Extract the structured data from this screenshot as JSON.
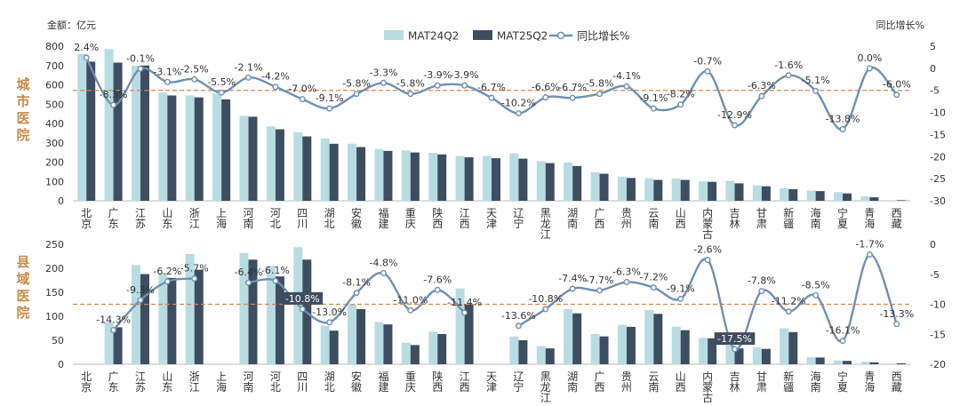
{
  "chart_data": [
    {
      "type": "bar",
      "section_label": "城市医院",
      "left_axis_title": "金额：亿元",
      "right_axis_title": "同比增长%",
      "legend": [
        "MAT24Q2",
        "MAT25Q2",
        "同比增长%"
      ],
      "categories": [
        "北京",
        "广东",
        "江苏",
        "山东",
        "浙江",
        "上海",
        "河南",
        "河北",
        "四川",
        "湖北",
        "安徽",
        "福建",
        "重庆",
        "陕西",
        "江西",
        "天津",
        "辽宁",
        "黑龙江",
        "湖南",
        "广西",
        "贵州",
        "云南",
        "山西",
        "内蒙古",
        "吉林",
        "甘肃",
        "新疆",
        "海南",
        "宁夏",
        "青海",
        "西藏"
      ],
      "ylim": [
        0,
        800
      ],
      "yticks": [
        0,
        100,
        200,
        300,
        400,
        500,
        600,
        700,
        800
      ],
      "y2lim": [
        -30,
        5
      ],
      "y2ticks": [
        5,
        0,
        -5,
        -10,
        -15,
        -20,
        -25,
        -30
      ],
      "series": [
        {
          "name": "MAT24Q2",
          "color": "#b7dde3",
          "values": [
            760,
            785,
            700,
            560,
            545,
            555,
            440,
            385,
            355,
            322,
            295,
            268,
            260,
            248,
            232,
            232,
            245,
            205,
            198,
            148,
            125,
            117,
            115,
            100,
            103,
            80,
            65,
            53,
            45,
            23,
            3
          ]
        },
        {
          "name": "MAT25Q2",
          "color": "#3f4d60",
          "values": [
            720,
            715,
            700,
            545,
            535,
            525,
            435,
            370,
            333,
            295,
            278,
            258,
            250,
            240,
            225,
            220,
            218,
            195,
            180,
            140,
            118,
            108,
            108,
            98,
            90,
            75,
            60,
            50,
            38,
            18,
            3
          ]
        },
        {
          "name": "同比增长%",
          "color": "#6f8fb3",
          "values": [
            2.4,
            -8.3,
            -0.1,
            -3.1,
            -2.5,
            -5.5,
            -2.1,
            -4.2,
            -7.0,
            -9.1,
            -5.8,
            -3.3,
            -5.8,
            -3.9,
            -3.9,
            -6.7,
            -10.2,
            -6.6,
            -6.7,
            -5.8,
            -4.1,
            -9.1,
            -8.2,
            -0.7,
            -12.9,
            -6.3,
            -1.6,
            -5.1,
            -13.8,
            0.0,
            -6.0
          ]
        }
      ],
      "data_labels": [
        "2.4%",
        "-8.3%",
        "-0.1%",
        "-3.1%",
        "-2.5%",
        "-5.5%",
        "-2.1%",
        "-4.2%",
        "-7.0%",
        "-9.1%",
        "-5.8%",
        "-3.3%",
        "-5.8%",
        "-3.9%",
        "-3.9%",
        "-6.7%",
        "-10.2%",
        "-6.6%",
        "-6.7%",
        "-5.8%",
        "-4.1%",
        "-9.1%",
        "-8.2%",
        "-0.7%",
        "-12.9%",
        "-6.3%",
        "-1.6%",
        "-5.1%",
        "-13.8%",
        "0.0%",
        "-6.0%"
      ],
      "reference_line": {
        "value": -5,
        "axis": "right",
        "color": "#d9854a"
      }
    },
    {
      "type": "bar",
      "section_label": "县域医院",
      "categories": [
        "北京",
        "广东",
        "江苏",
        "山东",
        "浙江",
        "上海",
        "河南",
        "河北",
        "四川",
        "湖北",
        "安徽",
        "福建",
        "重庆",
        "陕西",
        "江西",
        "天津",
        "辽宁",
        "黑龙江",
        "湖南",
        "广西",
        "贵州",
        "云南",
        "山西",
        "内蒙古",
        "吉林",
        "甘肃",
        "新疆",
        "海南",
        "宁夏",
        "青海",
        "西藏"
      ],
      "ylim": [
        0,
        250
      ],
      "yticks": [
        0,
        50,
        100,
        150,
        200,
        250
      ],
      "y2lim": [
        -20,
        0
      ],
      "y2ticks": [
        0,
        -5,
        -10,
        -15,
        -20
      ],
      "series": [
        {
          "name": "MAT24Q2",
          "color": "#b7dde3",
          "values": [
            0,
            88,
            207,
            190,
            230,
            0,
            232,
            205,
            244,
            80,
            125,
            88,
            45,
            68,
            158,
            0,
            58,
            38,
            115,
            63,
            82,
            113,
            78,
            55,
            40,
            35,
            75,
            15,
            8,
            5,
            2
          ]
        },
        {
          "name": "MAT25Q2",
          "color": "#3f4d60",
          "values": [
            0,
            77,
            188,
            180,
            197,
            0,
            218,
            183,
            218,
            70,
            115,
            83,
            40,
            63,
            125,
            0,
            50,
            33,
            106,
            58,
            78,
            105,
            71,
            54,
            33,
            32,
            67,
            14,
            7,
            4,
            2
          ]
        },
        {
          "name": "同比增长%",
          "color": "#6f8fb3",
          "values": [
            null,
            -14.3,
            -9.3,
            -6.2,
            -5.7,
            null,
            -6.4,
            -6.1,
            -10.8,
            -13.0,
            -8.1,
            -4.8,
            -11.0,
            -7.6,
            -11.4,
            null,
            -13.6,
            -10.8,
            -7.4,
            -7.7,
            -6.3,
            -7.2,
            -9.1,
            -2.6,
            -17.5,
            -7.8,
            -11.2,
            -8.5,
            -16.1,
            -1.7,
            -13.3
          ]
        }
      ],
      "data_labels": [
        null,
        "-14.3%",
        "-9.3%",
        "-6.2%",
        "-5.7%",
        null,
        "-6.4%",
        "-6.1%",
        "-10.8%",
        "-13.0%",
        "-8.1%",
        "-4.8%",
        "-11.0%",
        "-7.6%",
        "-11.4%",
        null,
        "-13.6%",
        "-10.8%",
        "-7.4%",
        "-7.7%",
        "-6.3%",
        "-7.2%",
        "-9.1%",
        "-2.6%",
        "-17.5%",
        "-7.8%",
        "-11.2%",
        "-8.5%",
        "-16.1%",
        "-1.7%",
        "-13.3%"
      ],
      "highlighted_labels": [
        8,
        24
      ],
      "reference_line": {
        "value": -10,
        "axis": "right",
        "color": "#d9854a"
      }
    }
  ]
}
